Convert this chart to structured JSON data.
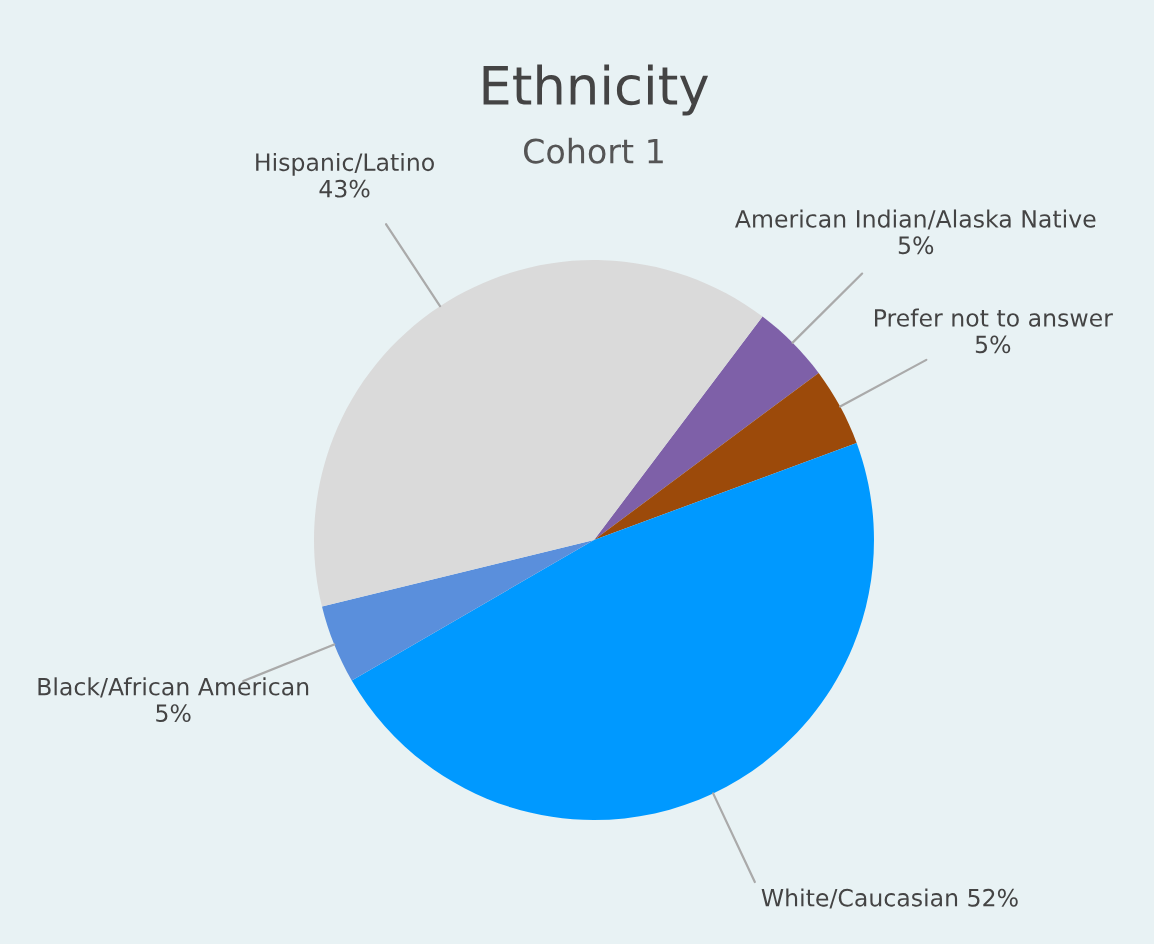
{
  "chart_data": {
    "type": "pie",
    "title": "Ethnicity",
    "subtitle": "Cohort 1",
    "categories": [
      "American Indian/Alaska Native",
      "Prefer not to answer",
      "White/Caucasian",
      "Black/African American",
      "Hispanic/Latino"
    ],
    "values": [
      5,
      5,
      52,
      5,
      43
    ],
    "value_labels": [
      "5%",
      "5%",
      "52%",
      "5%",
      "43%"
    ],
    "colors": [
      "#7e60a8",
      "#9c4a0a",
      "#0099ff",
      "#5a8fdc",
      "#dadada"
    ],
    "legend": false
  }
}
